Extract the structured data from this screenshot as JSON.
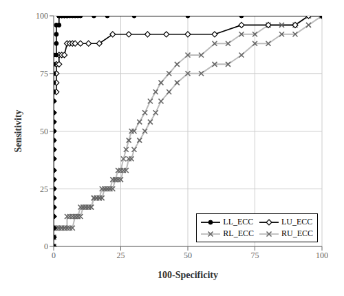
{
  "chart_data": {
    "type": "line",
    "xlabel": "100-Specificity",
    "ylabel": "Sensitivity",
    "xlim": [
      0,
      100
    ],
    "ylim": [
      0,
      100
    ],
    "xticks": [
      0,
      25,
      50,
      75,
      100
    ],
    "yticks": [
      0,
      25,
      50,
      75,
      100
    ],
    "grid": true,
    "legend": "lower right",
    "series": [
      {
        "name": "LL_ECC",
        "color": "#000000",
        "marker": "circle",
        "line_style": "solid",
        "x": [
          0,
          0,
          0,
          0,
          0,
          0,
          0,
          0,
          0,
          0,
          0,
          0,
          0,
          0,
          0,
          0,
          0,
          0,
          0,
          0,
          0,
          1,
          1,
          1,
          1,
          2,
          2,
          2,
          2,
          2,
          3,
          3,
          4,
          4,
          5,
          5,
          6,
          7,
          8,
          9,
          10,
          15,
          20,
          30,
          50,
          70,
          100
        ],
        "values": [
          0,
          4,
          8,
          13,
          17,
          21,
          25,
          29,
          33,
          38,
          42,
          46,
          50,
          54,
          58,
          63,
          67,
          71,
          75,
          79,
          83,
          83,
          88,
          92,
          96,
          96,
          100,
          100,
          100,
          100,
          100,
          100,
          100,
          100,
          100,
          100,
          100,
          100,
          100,
          100,
          100,
          100,
          100,
          100,
          100,
          100,
          100
        ]
      },
      {
        "name": "LU_ECC",
        "color": "#000000",
        "marker": "diamond",
        "line_style": "solid",
        "x": [
          0,
          0,
          0,
          0,
          0,
          0,
          0,
          0,
          0,
          0,
          0,
          0,
          0,
          0,
          0,
          0,
          0,
          1,
          1,
          1,
          1,
          2,
          2,
          3,
          4,
          5,
          6,
          7,
          8,
          10,
          13,
          17,
          22,
          28,
          35,
          42,
          50,
          60,
          70,
          80,
          90,
          95,
          100
        ],
        "values": [
          0,
          4,
          8,
          13,
          17,
          21,
          25,
          29,
          33,
          38,
          42,
          46,
          50,
          54,
          58,
          63,
          67,
          67,
          71,
          75,
          79,
          79,
          83,
          83,
          83,
          88,
          88,
          88,
          88,
          88,
          88,
          88,
          92,
          92,
          92,
          92,
          92,
          92,
          96,
          96,
          96,
          100,
          100
        ]
      },
      {
        "name": "RL_ECC",
        "color": "#bbbbbb",
        "marker": "x",
        "line_style": "solid",
        "x": [
          0,
          0,
          0,
          1,
          2,
          3,
          4,
          5,
          5,
          6,
          7,
          8,
          9,
          10,
          11,
          12,
          13,
          14,
          15,
          16,
          17,
          18,
          19,
          20,
          21,
          22,
          23,
          24,
          25,
          26,
          27,
          28,
          29,
          30,
          32,
          34,
          36,
          38,
          40,
          43,
          46,
          50,
          55,
          60,
          65,
          70,
          75,
          80,
          85,
          90,
          95,
          100
        ],
        "values": [
          0,
          4,
          8,
          8,
          8,
          8,
          8,
          8,
          13,
          13,
          13,
          13,
          13,
          17,
          17,
          17,
          17,
          17,
          21,
          21,
          21,
          21,
          25,
          25,
          25,
          29,
          29,
          33,
          33,
          38,
          42,
          46,
          50,
          50,
          54,
          58,
          63,
          67,
          71,
          75,
          79,
          83,
          83,
          88,
          88,
          92,
          92,
          96,
          96,
          96,
          100,
          100
        ]
      },
      {
        "name": "RU_ECC",
        "color": "#bbbbbb",
        "marker": "x",
        "line_style": "solid",
        "x": [
          0,
          0,
          0,
          1,
          2,
          3,
          4,
          5,
          6,
          7,
          8,
          9,
          10,
          11,
          12,
          13,
          14,
          15,
          16,
          17,
          18,
          19,
          20,
          21,
          22,
          23,
          24,
          25,
          26,
          27,
          28,
          29,
          30,
          32,
          34,
          36,
          38,
          40,
          43,
          46,
          50,
          55,
          60,
          65,
          70,
          75,
          80,
          85,
          90,
          95,
          100
        ],
        "values": [
          0,
          4,
          8,
          8,
          8,
          8,
          8,
          8,
          8,
          8,
          13,
          13,
          13,
          17,
          17,
          17,
          17,
          21,
          21,
          21,
          25,
          25,
          25,
          25,
          25,
          29,
          29,
          29,
          33,
          33,
          38,
          38,
          42,
          46,
          50,
          54,
          58,
          63,
          67,
          71,
          75,
          75,
          79,
          79,
          83,
          88,
          88,
          92,
          92,
          96,
          100
        ]
      }
    ]
  }
}
